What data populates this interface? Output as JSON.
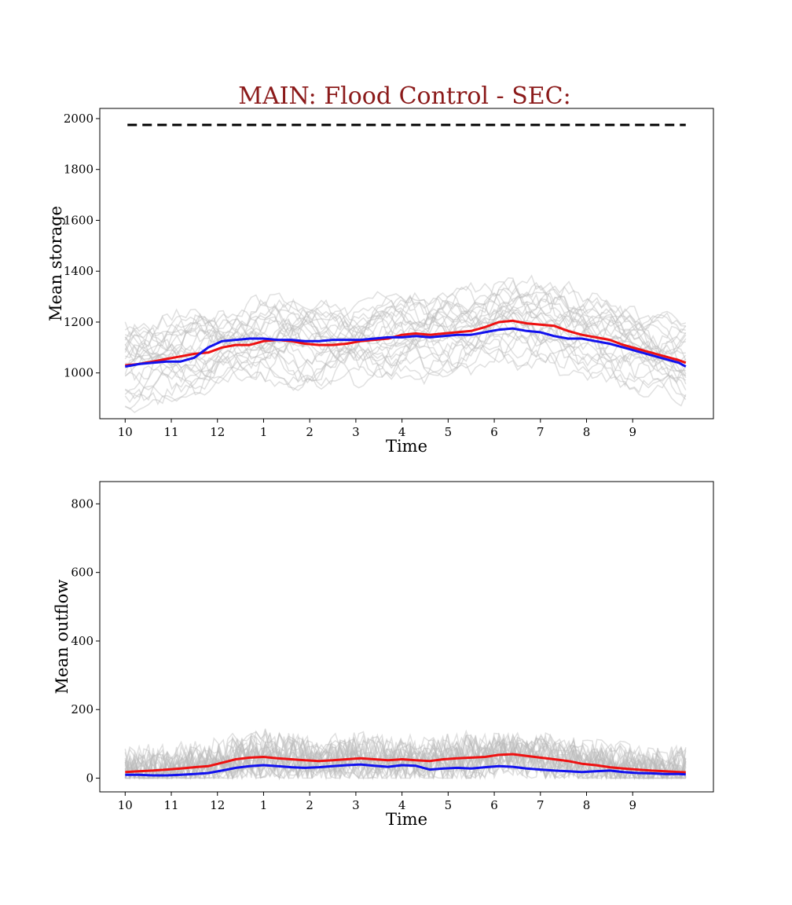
{
  "title": "MAIN: Flood Control - SEC:",
  "colors": {
    "title": "#8b1a1a",
    "red_series": "#ee1111",
    "blue_series": "#1111ee",
    "gray_series": "#bbbbbb",
    "capacity": "#000000"
  },
  "chart_data": [
    {
      "type": "line",
      "xlabel": "Time",
      "ylabel": "Mean storage",
      "x_tick_labels": [
        "10",
        "11",
        "12",
        "1",
        "2",
        "3",
        "4",
        "5",
        "6",
        "7",
        "8",
        "9"
      ],
      "x_tick_index": [
        0,
        1,
        2,
        3,
        4,
        5,
        6,
        7,
        8,
        9,
        10,
        11
      ],
      "xlim": [
        -0.55,
        12.75
      ],
      "ylim": [
        820,
        2040
      ],
      "y_ticks": [
        1000,
        1200,
        1400,
        1600,
        1800,
        2000
      ],
      "grid": false,
      "capacity_line": {
        "y": 1975,
        "x_range": [
          0.05,
          12.15
        ],
        "style": "dashed"
      },
      "series": [
        {
          "color": "#ee1111",
          "x": [
            0,
            0.3,
            0.6,
            0.9,
            1.2,
            1.5,
            1.8,
            2.1,
            2.4,
            2.7,
            3.0,
            3.3,
            3.6,
            3.9,
            4.2,
            4.5,
            4.8,
            5.1,
            5.4,
            5.7,
            6.0,
            6.3,
            6.6,
            6.9,
            7.2,
            7.5,
            7.8,
            8.1,
            8.4,
            8.7,
            9.0,
            9.3,
            9.6,
            9.9,
            10.2,
            10.5,
            10.8,
            11.1,
            11.4,
            11.7,
            12.0,
            12.15
          ],
          "y": [
            1030,
            1035,
            1045,
            1055,
            1065,
            1075,
            1080,
            1100,
            1110,
            1110,
            1125,
            1130,
            1125,
            1115,
            1110,
            1110,
            1115,
            1125,
            1130,
            1135,
            1150,
            1155,
            1150,
            1155,
            1160,
            1165,
            1180,
            1200,
            1205,
            1195,
            1190,
            1185,
            1165,
            1150,
            1140,
            1130,
            1110,
            1095,
            1080,
            1065,
            1050,
            1040
          ]
        },
        {
          "color": "#1111ee",
          "x": [
            0,
            0.3,
            0.6,
            0.9,
            1.2,
            1.5,
            1.8,
            2.1,
            2.4,
            2.7,
            3.0,
            3.3,
            3.6,
            3.9,
            4.2,
            4.5,
            4.8,
            5.1,
            5.4,
            5.7,
            6.0,
            6.3,
            6.6,
            6.9,
            7.2,
            7.5,
            7.8,
            8.1,
            8.4,
            8.7,
            9.0,
            9.3,
            9.6,
            9.9,
            10.2,
            10.5,
            10.8,
            11.1,
            11.4,
            11.7,
            12.0,
            12.15
          ],
          "y": [
            1025,
            1035,
            1040,
            1045,
            1045,
            1060,
            1100,
            1125,
            1130,
            1135,
            1135,
            1130,
            1130,
            1125,
            1125,
            1130,
            1130,
            1130,
            1135,
            1140,
            1140,
            1145,
            1140,
            1145,
            1150,
            1150,
            1160,
            1170,
            1175,
            1165,
            1160,
            1145,
            1135,
            1135,
            1125,
            1115,
            1100,
            1085,
            1070,
            1055,
            1040,
            1025
          ]
        }
      ]
    },
    {
      "type": "line",
      "xlabel": "Time",
      "ylabel": "Mean outflow",
      "x_tick_labels": [
        "10",
        "11",
        "12",
        "1",
        "2",
        "3",
        "4",
        "5",
        "6",
        "7",
        "8",
        "9"
      ],
      "x_tick_index": [
        0,
        1,
        2,
        3,
        4,
        5,
        6,
        7,
        8,
        9,
        10,
        11
      ],
      "xlim": [
        -0.55,
        12.75
      ],
      "ylim": [
        -40,
        865
      ],
      "y_ticks": [
        0,
        200,
        400,
        600,
        800
      ],
      "grid": false,
      "series": [
        {
          "color": "#ee1111",
          "x": [
            0,
            0.3,
            0.6,
            0.9,
            1.2,
            1.5,
            1.8,
            2.1,
            2.4,
            2.7,
            3.0,
            3.3,
            3.6,
            3.9,
            4.2,
            4.5,
            4.8,
            5.1,
            5.4,
            5.7,
            6.0,
            6.3,
            6.6,
            6.9,
            7.2,
            7.5,
            7.8,
            8.1,
            8.4,
            8.7,
            9.0,
            9.3,
            9.6,
            9.9,
            10.2,
            10.5,
            10.8,
            11.1,
            11.4,
            11.7,
            12.0,
            12.15
          ],
          "y": [
            18,
            20,
            22,
            25,
            28,
            32,
            35,
            45,
            55,
            60,
            62,
            58,
            55,
            52,
            50,
            52,
            55,
            58,
            55,
            52,
            55,
            52,
            50,
            55,
            58,
            60,
            62,
            68,
            70,
            65,
            60,
            55,
            50,
            42,
            38,
            32,
            28,
            25,
            22,
            20,
            18,
            17
          ]
        },
        {
          "color": "#1111ee",
          "x": [
            0,
            0.3,
            0.6,
            0.9,
            1.2,
            1.5,
            1.8,
            2.1,
            2.4,
            2.7,
            3.0,
            3.3,
            3.6,
            3.9,
            4.2,
            4.5,
            4.8,
            5.1,
            5.4,
            5.7,
            6.0,
            6.3,
            6.6,
            6.9,
            7.2,
            7.5,
            7.8,
            8.1,
            8.4,
            8.7,
            9.0,
            9.3,
            9.6,
            9.9,
            10.2,
            10.5,
            10.8,
            11.1,
            11.4,
            11.7,
            12.0,
            12.15
          ],
          "y": [
            10,
            10,
            8,
            8,
            10,
            12,
            15,
            22,
            30,
            35,
            38,
            35,
            32,
            30,
            32,
            35,
            38,
            40,
            36,
            33,
            38,
            36,
            25,
            28,
            30,
            28,
            32,
            35,
            33,
            28,
            25,
            22,
            20,
            18,
            20,
            22,
            18,
            15,
            14,
            12,
            12,
            11
          ]
        }
      ]
    }
  ]
}
